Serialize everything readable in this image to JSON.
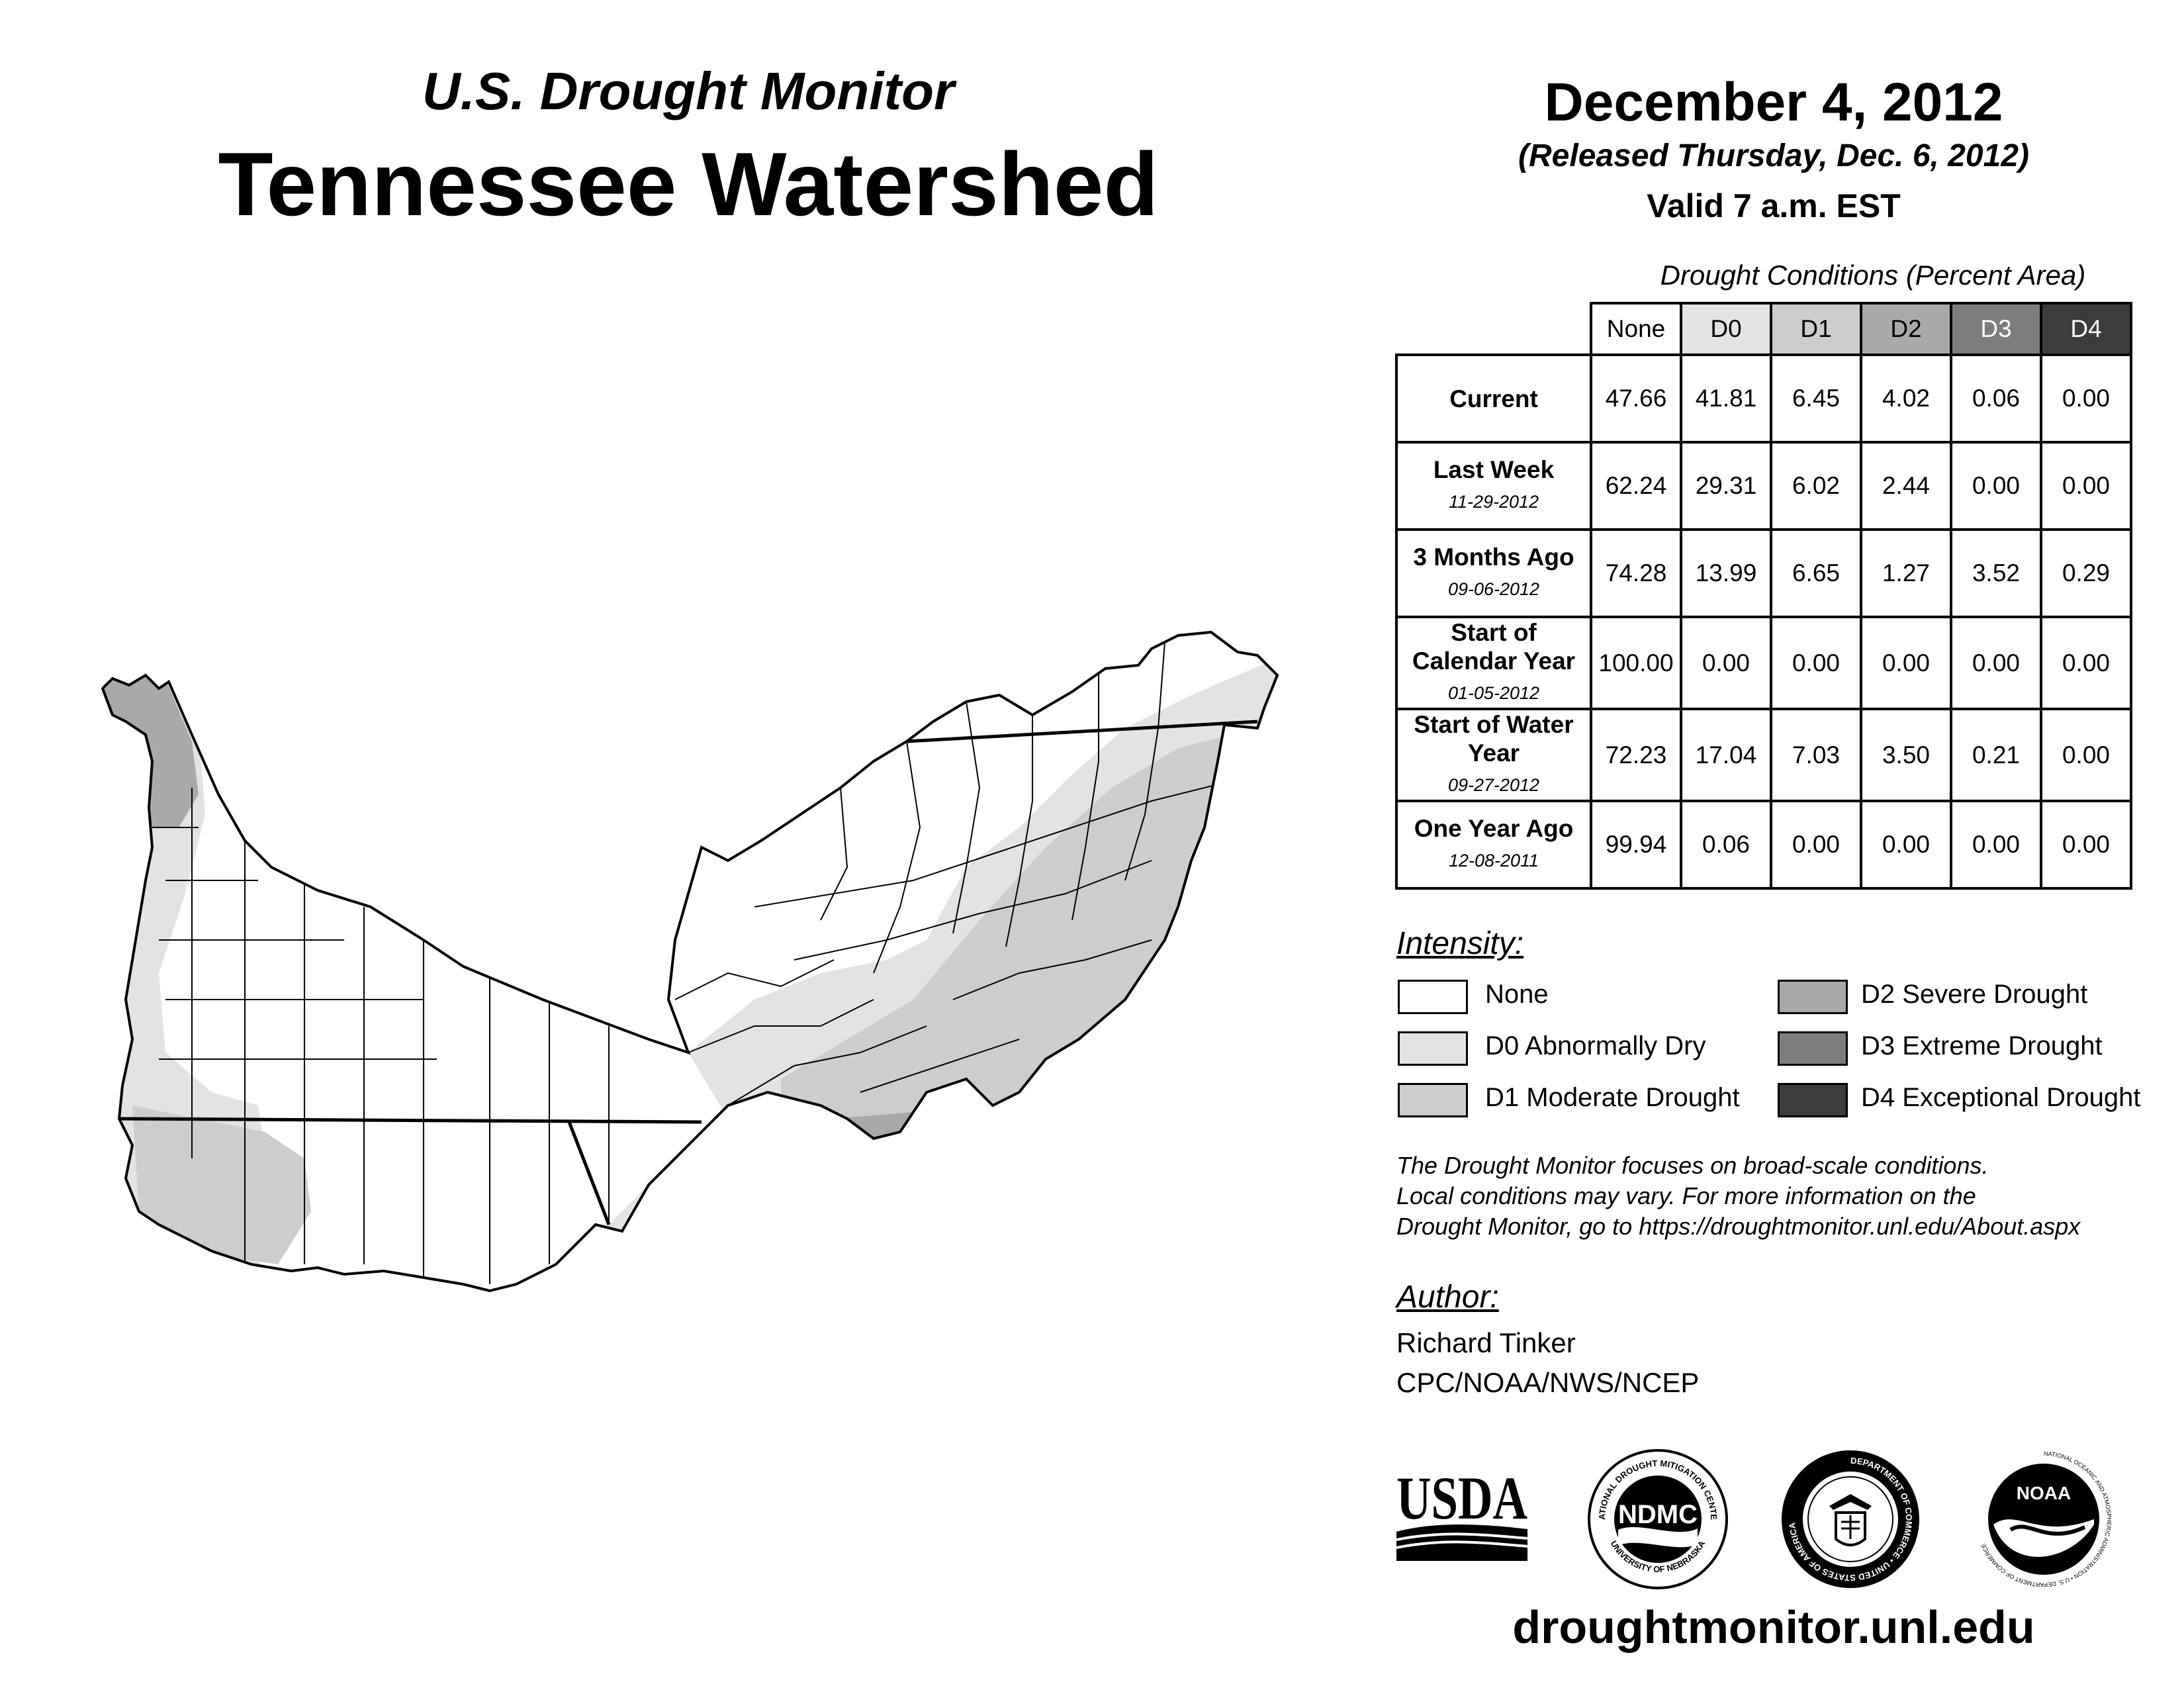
{
  "header": {
    "subtitle": "U.S. Drought Monitor",
    "title": "Tennessee Watershed",
    "date": "December 4, 2012",
    "released": "(Released Thursday, Dec. 6, 2012)",
    "valid": "Valid 7 a.m. EST"
  },
  "table": {
    "caption": "Drought Conditions (Percent Area)",
    "columns": [
      "None",
      "D0",
      "D1",
      "D2",
      "D3",
      "D4"
    ],
    "column_colors": [
      "#ffffff",
      "#e3e3e3",
      "#cdcdcd",
      "#a9a9a9",
      "#7d7d7d",
      "#3c3c3c"
    ],
    "rows": [
      {
        "label": "Current",
        "date": "",
        "values": [
          "47.66",
          "41.81",
          "6.45",
          "4.02",
          "0.06",
          "0.00"
        ]
      },
      {
        "label": "Last Week",
        "date": "11-29-2012",
        "values": [
          "62.24",
          "29.31",
          "6.02",
          "2.44",
          "0.00",
          "0.00"
        ]
      },
      {
        "label": "3 Months Ago",
        "date": "09-06-2012",
        "values": [
          "74.28",
          "13.99",
          "6.65",
          "1.27",
          "3.52",
          "0.29"
        ]
      },
      {
        "label": "Start of Calendar Year",
        "date": "01-05-2012",
        "values": [
          "100.00",
          "0.00",
          "0.00",
          "0.00",
          "0.00",
          "0.00"
        ]
      },
      {
        "label": "Start of Water Year",
        "date": "09-27-2012",
        "values": [
          "72.23",
          "17.04",
          "7.03",
          "3.50",
          "0.21",
          "0.00"
        ]
      },
      {
        "label": "One Year Ago",
        "date": "12-08-2011",
        "values": [
          "99.94",
          "0.06",
          "0.00",
          "0.00",
          "0.00",
          "0.00"
        ]
      }
    ]
  },
  "legend": {
    "title": "Intensity:",
    "items": [
      {
        "label": "None",
        "color": "#ffffff"
      },
      {
        "label": "D0 Abnormally Dry",
        "color": "#e3e3e3"
      },
      {
        "label": "D1 Moderate Drought",
        "color": "#cdcdcd"
      },
      {
        "label": "D2 Severe Drought",
        "color": "#a9a9a9"
      },
      {
        "label": "D3 Extreme Drought",
        "color": "#7d7d7d"
      },
      {
        "label": "D4 Exceptional Drought",
        "color": "#3c3c3c"
      }
    ]
  },
  "disclaimer": {
    "line1": "The Drought Monitor focuses on broad-scale conditions.",
    "line2": "Local conditions may vary. For more information on the",
    "line3": "Drought Monitor, go to https://droughtmonitor.unl.edu/About.aspx"
  },
  "author": {
    "title": "Author:",
    "name": "Richard Tinker",
    "org": "CPC/NOAA/NWS/NCEP"
  },
  "logos": {
    "usda": "USDA",
    "ndmc": "NDMC",
    "ndmc_ring_top": "NATIONAL DROUGHT MITIGATION CENTER",
    "ndmc_ring_bottom": "UNIVERSITY OF NEBRASKA",
    "doc_ring": "DEPARTMENT OF COMMERCE • UNITED STATES OF AMERICA",
    "noaa": "NOAA",
    "noaa_ring": "NATIONAL OCEANIC AND ATMOSPHERIC ADMINISTRATION • U.S. DEPARTMENT OF COMMERCE"
  },
  "footer": {
    "url": "droughtmonitor.unl.edu"
  }
}
